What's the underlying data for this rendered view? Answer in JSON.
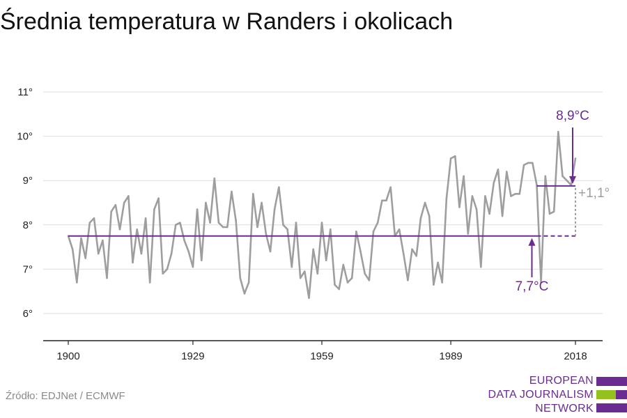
{
  "title": "Średnia temperatura w Randers i okolicach",
  "source": "Źródło: EDJNet / ECMWF",
  "logo": {
    "lines": [
      "EUROPEAN",
      "DATA JOURNALISM",
      "NETWORK"
    ]
  },
  "colors": {
    "series": "#9e9e9e",
    "accent": "#6a2c91",
    "logo_green": "#95c11f",
    "grid": "#dddddd"
  },
  "annotations": {
    "baseline_label": "7,7°C",
    "recent_label": "8,9°C",
    "delta_label": "+1,1°"
  },
  "chart_data": {
    "type": "line",
    "title": "Średnia temperatura w Randers i okolicach",
    "xlabel": "",
    "ylabel": "",
    "xlim": [
      1900,
      2018
    ],
    "ylim": [
      6,
      11
    ],
    "x_ticks": [
      1900,
      1929,
      1959,
      1989,
      2018
    ],
    "x_tick_labels": [
      "1900",
      "1929",
      "1959",
      "1989",
      "2018"
    ],
    "y_ticks": [
      6,
      7,
      8,
      9,
      10,
      11
    ],
    "y_tick_labels": [
      "6°",
      "7°",
      "8°",
      "9°",
      "10°",
      "11°"
    ],
    "grid": true,
    "series": [
      {
        "name": "",
        "x": [
          1900,
          1901,
          1902,
          1903,
          1904,
          1905,
          1906,
          1907,
          1908,
          1909,
          1910,
          1911,
          1912,
          1913,
          1914,
          1915,
          1916,
          1917,
          1918,
          1919,
          1920,
          1921,
          1922,
          1923,
          1924,
          1925,
          1926,
          1927,
          1928,
          1929,
          1930,
          1931,
          1932,
          1933,
          1934,
          1935,
          1936,
          1937,
          1938,
          1939,
          1940,
          1941,
          1942,
          1943,
          1944,
          1945,
          1946,
          1947,
          1948,
          1949,
          1950,
          1951,
          1952,
          1953,
          1954,
          1955,
          1956,
          1957,
          1958,
          1959,
          1960,
          1961,
          1962,
          1963,
          1964,
          1965,
          1966,
          1967,
          1968,
          1969,
          1970,
          1971,
          1972,
          1973,
          1974,
          1975,
          1976,
          1977,
          1978,
          1979,
          1980,
          1981,
          1982,
          1983,
          1984,
          1985,
          1986,
          1987,
          1988,
          1989,
          1990,
          1991,
          1992,
          1993,
          1994,
          1995,
          1996,
          1997,
          1998,
          1999,
          2000,
          2001,
          2002,
          2003,
          2004,
          2005,
          2006,
          2007,
          2008,
          2009,
          2010,
          2011,
          2012,
          2013,
          2014,
          2015,
          2016,
          2017,
          2018
        ],
        "values": [
          7.75,
          7.45,
          6.7,
          7.7,
          7.25,
          8.05,
          8.15,
          7.35,
          7.65,
          6.8,
          8.3,
          8.45,
          7.9,
          8.5,
          8.65,
          7.15,
          7.9,
          7.35,
          8.15,
          6.7,
          8.35,
          8.6,
          6.9,
          7.0,
          7.35,
          8.0,
          8.05,
          7.65,
          7.4,
          7.05,
          8.35,
          7.2,
          8.5,
          8.05,
          9.05,
          8.05,
          7.95,
          7.95,
          8.75,
          8.1,
          6.8,
          6.45,
          6.7,
          8.7,
          7.95,
          8.5,
          7.8,
          7.4,
          8.35,
          8.85,
          8.0,
          7.9,
          7.05,
          8.05,
          6.8,
          6.95,
          6.35,
          7.45,
          6.9,
          8.05,
          7.2,
          7.9,
          6.65,
          6.55,
          7.1,
          6.7,
          6.8,
          7.85,
          7.4,
          6.9,
          6.75,
          7.85,
          8.05,
          8.55,
          8.55,
          8.85,
          7.75,
          7.9,
          7.35,
          6.75,
          7.45,
          7.3,
          8.15,
          8.5,
          8.2,
          6.65,
          7.15,
          6.7,
          8.6,
          9.5,
          9.55,
          8.4,
          9.1,
          7.8,
          8.65,
          8.35,
          7.05,
          8.65,
          8.25,
          8.95,
          9.25,
          8.2,
          9.2,
          8.65,
          8.7,
          8.7,
          9.35,
          9.4,
          9.4,
          8.9,
          6.7,
          9.1,
          8.25,
          8.3,
          10.1,
          9.1,
          9.0,
          8.9,
          9.5
        ]
      }
    ],
    "reference_lines": [
      {
        "label": "7,7°C",
        "value": 7.75,
        "from": 1900,
        "to": 2018,
        "solid_until": 2009
      },
      {
        "label": "8,9°C",
        "value": 8.88,
        "from": 2009,
        "to": 2018
      }
    ]
  }
}
